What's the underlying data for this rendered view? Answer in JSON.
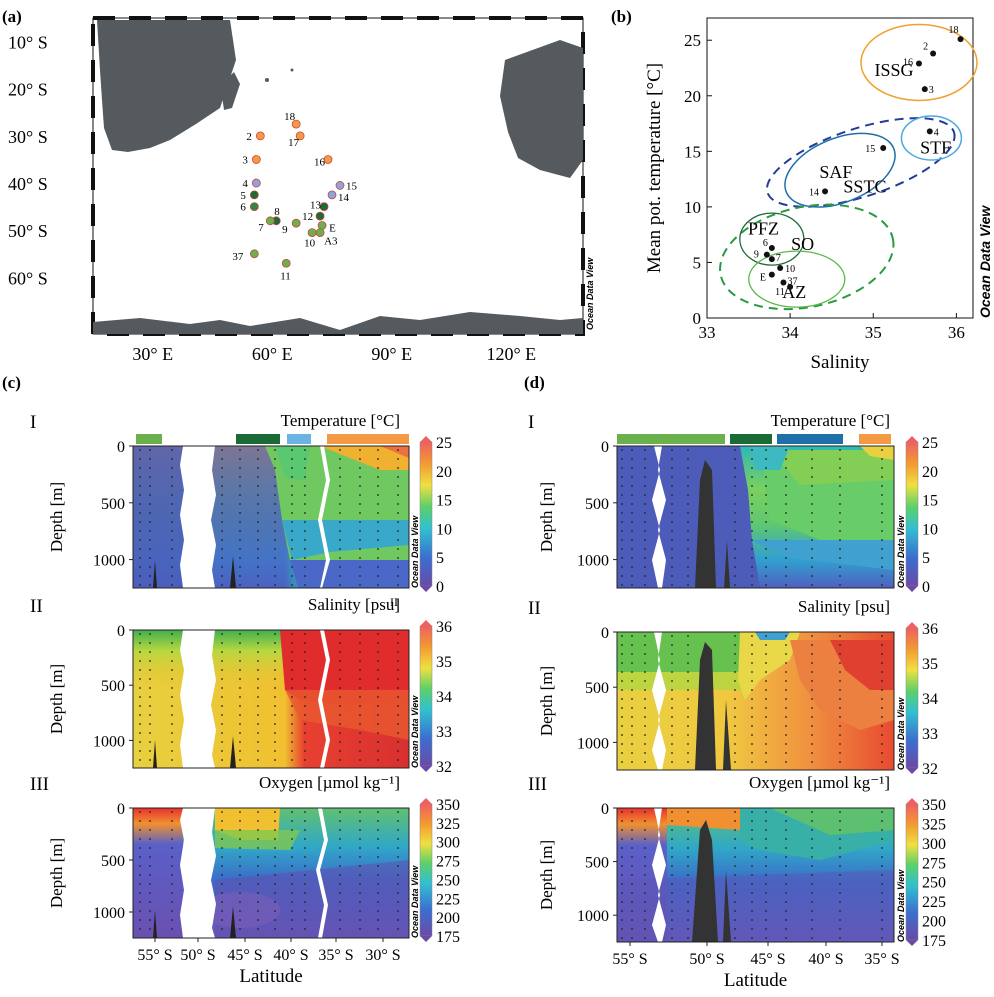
{
  "panels": {
    "a": "(a)",
    "b": "(b)",
    "c": "(c)",
    "d": "(d)"
  },
  "odv_label": "Ocean Data View",
  "map": {
    "lat_ticks": [
      "10° S",
      "20° S",
      "30° S",
      "40° S",
      "50° S",
      "60° S"
    ],
    "lon_ticks": [
      "30° E",
      "60° E",
      "90° E",
      "120° E"
    ],
    "stations": [
      {
        "id": "18",
        "lon": 66,
        "lat": -27.5,
        "color": "#f49a45"
      },
      {
        "id": "2",
        "lon": 57,
        "lat": -30,
        "color": "#f49a45"
      },
      {
        "id": "17",
        "lon": 67,
        "lat": -30,
        "color": "#f49a45"
      },
      {
        "id": "3",
        "lon": 56,
        "lat": -35,
        "color": "#f49a45"
      },
      {
        "id": "16",
        "lon": 74,
        "lat": -35,
        "color": "#f49a45"
      },
      {
        "id": "4",
        "lon": 56,
        "lat": -40,
        "color": "#8aa6d8"
      },
      {
        "id": "15",
        "lon": 77,
        "lat": -40.5,
        "color": "#8aa6d8"
      },
      {
        "id": "5",
        "lon": 55.5,
        "lat": -42.5,
        "color": "#1a6b35"
      },
      {
        "id": "14",
        "lon": 75,
        "lat": -42.5,
        "color": "#8aa6d8"
      },
      {
        "id": "6",
        "lon": 55.5,
        "lat": -45,
        "color": "#2a8a44"
      },
      {
        "id": "13",
        "lon": 73,
        "lat": -45,
        "color": "#1a6b35"
      },
      {
        "id": "12",
        "lon": 72,
        "lat": -47,
        "color": "#1a6b35"
      },
      {
        "id": "8",
        "lon": 61,
        "lat": -48,
        "color": "#1a6b35"
      },
      {
        "id": "7",
        "lon": 59.5,
        "lat": -48,
        "color": "#6ab04c"
      },
      {
        "id": "9",
        "lon": 66,
        "lat": -48.5,
        "color": "#6ab04c"
      },
      {
        "id": "E",
        "lon": 72.5,
        "lat": -49,
        "color": "#6ab04c"
      },
      {
        "id": "10",
        "lon": 70,
        "lat": -50.5,
        "color": "#6ab04c"
      },
      {
        "id": "A3",
        "lon": 72,
        "lat": -50.5,
        "color": "#6ab04c"
      },
      {
        "id": "37",
        "lon": 55.5,
        "lat": -55,
        "color": "#6ab04c"
      },
      {
        "id": "11",
        "lon": 63.5,
        "lat": -57,
        "color": "#6ab04c"
      }
    ]
  },
  "chart_data": [
    {
      "type": "scatter",
      "title": "",
      "xlabel": "Salinity",
      "ylabel": "Mean pot. temperature [°C]",
      "xlim": [
        33,
        36.2
      ],
      "ylim": [
        0,
        27
      ],
      "xticks": [
        "33",
        "34",
        "35",
        "36"
      ],
      "yticks": [
        "0",
        "5",
        "10",
        "15",
        "20",
        "25"
      ],
      "points": [
        {
          "label": "18",
          "x": 36.05,
          "y": 25.1
        },
        {
          "label": "2",
          "x": 35.72,
          "y": 23.8
        },
        {
          "label": "16",
          "x": 35.55,
          "y": 22.9
        },
        {
          "label": "3",
          "x": 35.62,
          "y": 20.6
        },
        {
          "label": "4",
          "x": 35.68,
          "y": 16.8
        },
        {
          "label": "15",
          "x": 35.12,
          "y": 15.3
        },
        {
          "label": "14",
          "x": 34.42,
          "y": 11.4
        },
        {
          "label": "6",
          "x": 33.78,
          "y": 6.3
        },
        {
          "label": "9",
          "x": 33.72,
          "y": 5.7
        },
        {
          "label": "7",
          "x": 33.78,
          "y": 5.3
        },
        {
          "label": "10",
          "x": 33.88,
          "y": 4.5
        },
        {
          "label": "E",
          "x": 33.78,
          "y": 3.9
        },
        {
          "label": "37",
          "x": 33.92,
          "y": 3.2
        },
        {
          "label": "11",
          "x": 34.0,
          "y": 2.8
        }
      ],
      "regions": [
        "ISSG",
        "STF",
        "SAF",
        "SSTC",
        "PFZ",
        "SO",
        "AZ"
      ]
    },
    {
      "type": "heatmap",
      "panel": "c",
      "xlabel": "Latitude",
      "xticks": [
        "55° S",
        "50° S",
        "45° S",
        "40° S",
        "35° S",
        "30° S"
      ],
      "ylabel": "Depth [m]",
      "yticks": [
        "0",
        "500",
        "1000"
      ],
      "sections": [
        {
          "roman": "I",
          "variable": "Temperature [°C]",
          "colorbar": [
            "25",
            "20",
            "15",
            "10",
            "5",
            "0"
          ]
        },
        {
          "roman": "II",
          "variable": "Salinity [psu]",
          "colorbar": [
            "36",
            "35",
            "34",
            "33",
            "32"
          ]
        },
        {
          "roman": "III",
          "variable": "Oxygen [µmol kg⁻¹]",
          "colorbar": [
            "350",
            "325",
            "300",
            "275",
            "250",
            "225",
            "200",
            "175"
          ]
        }
      ],
      "section_marker": "II",
      "zone_bar": [
        "#6ab04c",
        "#1a6b35",
        "#6bb3e3",
        "#f49a45"
      ]
    },
    {
      "type": "heatmap",
      "panel": "d",
      "xlabel": "Latitude",
      "xticks": [
        "55° S",
        "50° S",
        "45° S",
        "40° S",
        "35° S"
      ],
      "ylabel": "Depth [m]",
      "yticks": [
        "0",
        "500",
        "1000"
      ],
      "sections": [
        {
          "roman": "I",
          "variable": "Temperature [°C]",
          "colorbar": [
            "25",
            "20",
            "15",
            "10",
            "5",
            "0"
          ]
        },
        {
          "roman": "II",
          "variable": "Salinity [psu]",
          "colorbar": [
            "36",
            "35",
            "34",
            "33",
            "32"
          ]
        },
        {
          "roman": "III",
          "variable": "Oxygen [µmol kg⁻¹]",
          "colorbar": [
            "350",
            "325",
            "300",
            "275",
            "250",
            "225",
            "200",
            "175"
          ]
        }
      ],
      "zone_bar": [
        "#6ab04c",
        "#1a6b35",
        "#1f6fa8",
        "#f49a45"
      ]
    }
  ]
}
